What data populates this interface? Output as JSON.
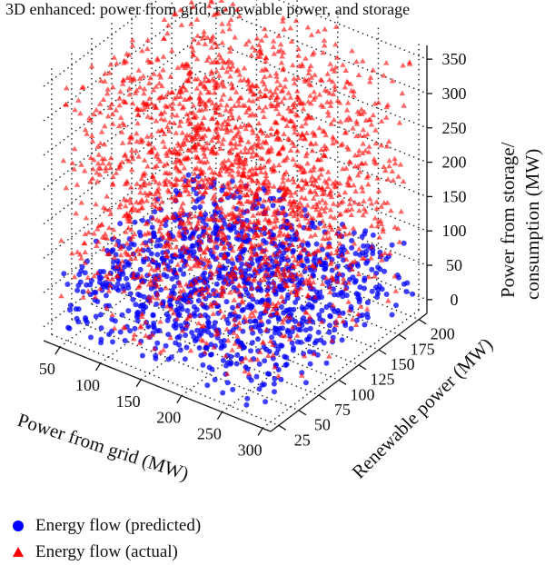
{
  "chart_data": {
    "type": "scatter",
    "title": "3D enhanced: power from grid, renewable power, and storage",
    "xlabel": "Power from grid (MW)",
    "ylabel": "Renewable power (MW)",
    "zlabel_line1": "Power from storage/",
    "zlabel_line2": "consumption (MW)",
    "x_ticks": [
      "50",
      "100",
      "150",
      "200",
      "250",
      "300"
    ],
    "y_ticks": [
      "25",
      "50",
      "75",
      "100",
      "125",
      "150",
      "175",
      "200"
    ],
    "z_ticks": [
      "0",
      "50",
      "100",
      "150",
      "200",
      "250",
      "300",
      "350"
    ],
    "xlim": [
      30,
      310
    ],
    "ylim": [
      15,
      210
    ],
    "zlim": [
      -20,
      370
    ],
    "series": [
      {
        "name": "Energy flow (predicted)",
        "marker": "circle",
        "color": "#0000ff",
        "x_range": [
          40,
          300
        ],
        "y_range": [
          20,
          205
        ],
        "z_range": [
          -10,
          90
        ]
      },
      {
        "name": "Energy flow (actual)",
        "marker": "triangle",
        "color": "#ff0000",
        "x_range": [
          40,
          300
        ],
        "y_range": [
          20,
          205
        ],
        "z_range": [
          0,
          360
        ]
      }
    ],
    "grid": "dotted",
    "legend": "bottom-left"
  }
}
